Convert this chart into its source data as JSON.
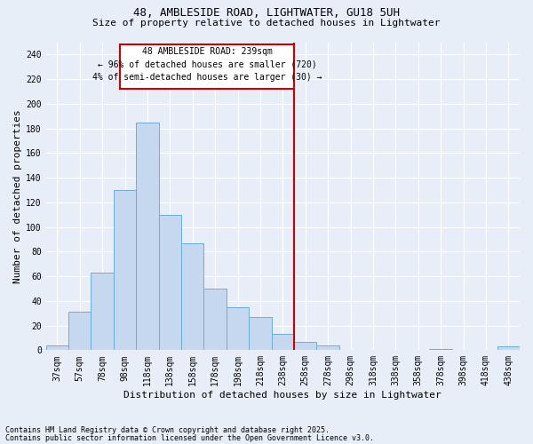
{
  "title": "48, AMBLESIDE ROAD, LIGHTWATER, GU18 5UH",
  "subtitle": "Size of property relative to detached houses in Lightwater",
  "xlabel": "Distribution of detached houses by size in Lightwater",
  "ylabel": "Number of detached properties",
  "footnote1": "Contains HM Land Registry data © Crown copyright and database right 2025.",
  "footnote2": "Contains public sector information licensed under the Open Government Licence v3.0.",
  "bar_labels": [
    "37sqm",
    "57sqm",
    "78sqm",
    "98sqm",
    "118sqm",
    "138sqm",
    "158sqm",
    "178sqm",
    "198sqm",
    "218sqm",
    "238sqm",
    "258sqm",
    "278sqm",
    "298sqm",
    "318sqm",
    "338sqm",
    "358sqm",
    "378sqm",
    "398sqm",
    "418sqm",
    "438sqm"
  ],
  "bar_values": [
    4,
    31,
    63,
    130,
    185,
    110,
    87,
    50,
    35,
    27,
    13,
    7,
    4,
    0,
    0,
    0,
    0,
    1,
    0,
    0,
    3
  ],
  "bar_color": "#c5d8f0",
  "bar_edge_color": "#6aaed6",
  "background_color": "#e8eef8",
  "grid_color": "#ffffff",
  "annotation_text1": "48 AMBLESIDE ROAD: 239sqm",
  "annotation_text2": "← 96% of detached houses are smaller (720)",
  "annotation_text3": "4% of semi-detached houses are larger (30) →",
  "annotation_box_color": "#ffffff",
  "annotation_box_edge": "#cc0000",
  "ylim": [
    0,
    250
  ],
  "yticks": [
    0,
    20,
    40,
    60,
    80,
    100,
    120,
    140,
    160,
    180,
    200,
    220,
    240
  ],
  "marker_line_color": "#cc0000",
  "marker_bar_index": 10,
  "title_fontsize": 9,
  "subtitle_fontsize": 8,
  "tick_fontsize": 7,
  "ylabel_fontsize": 8,
  "xlabel_fontsize": 8,
  "footnote_fontsize": 6
}
